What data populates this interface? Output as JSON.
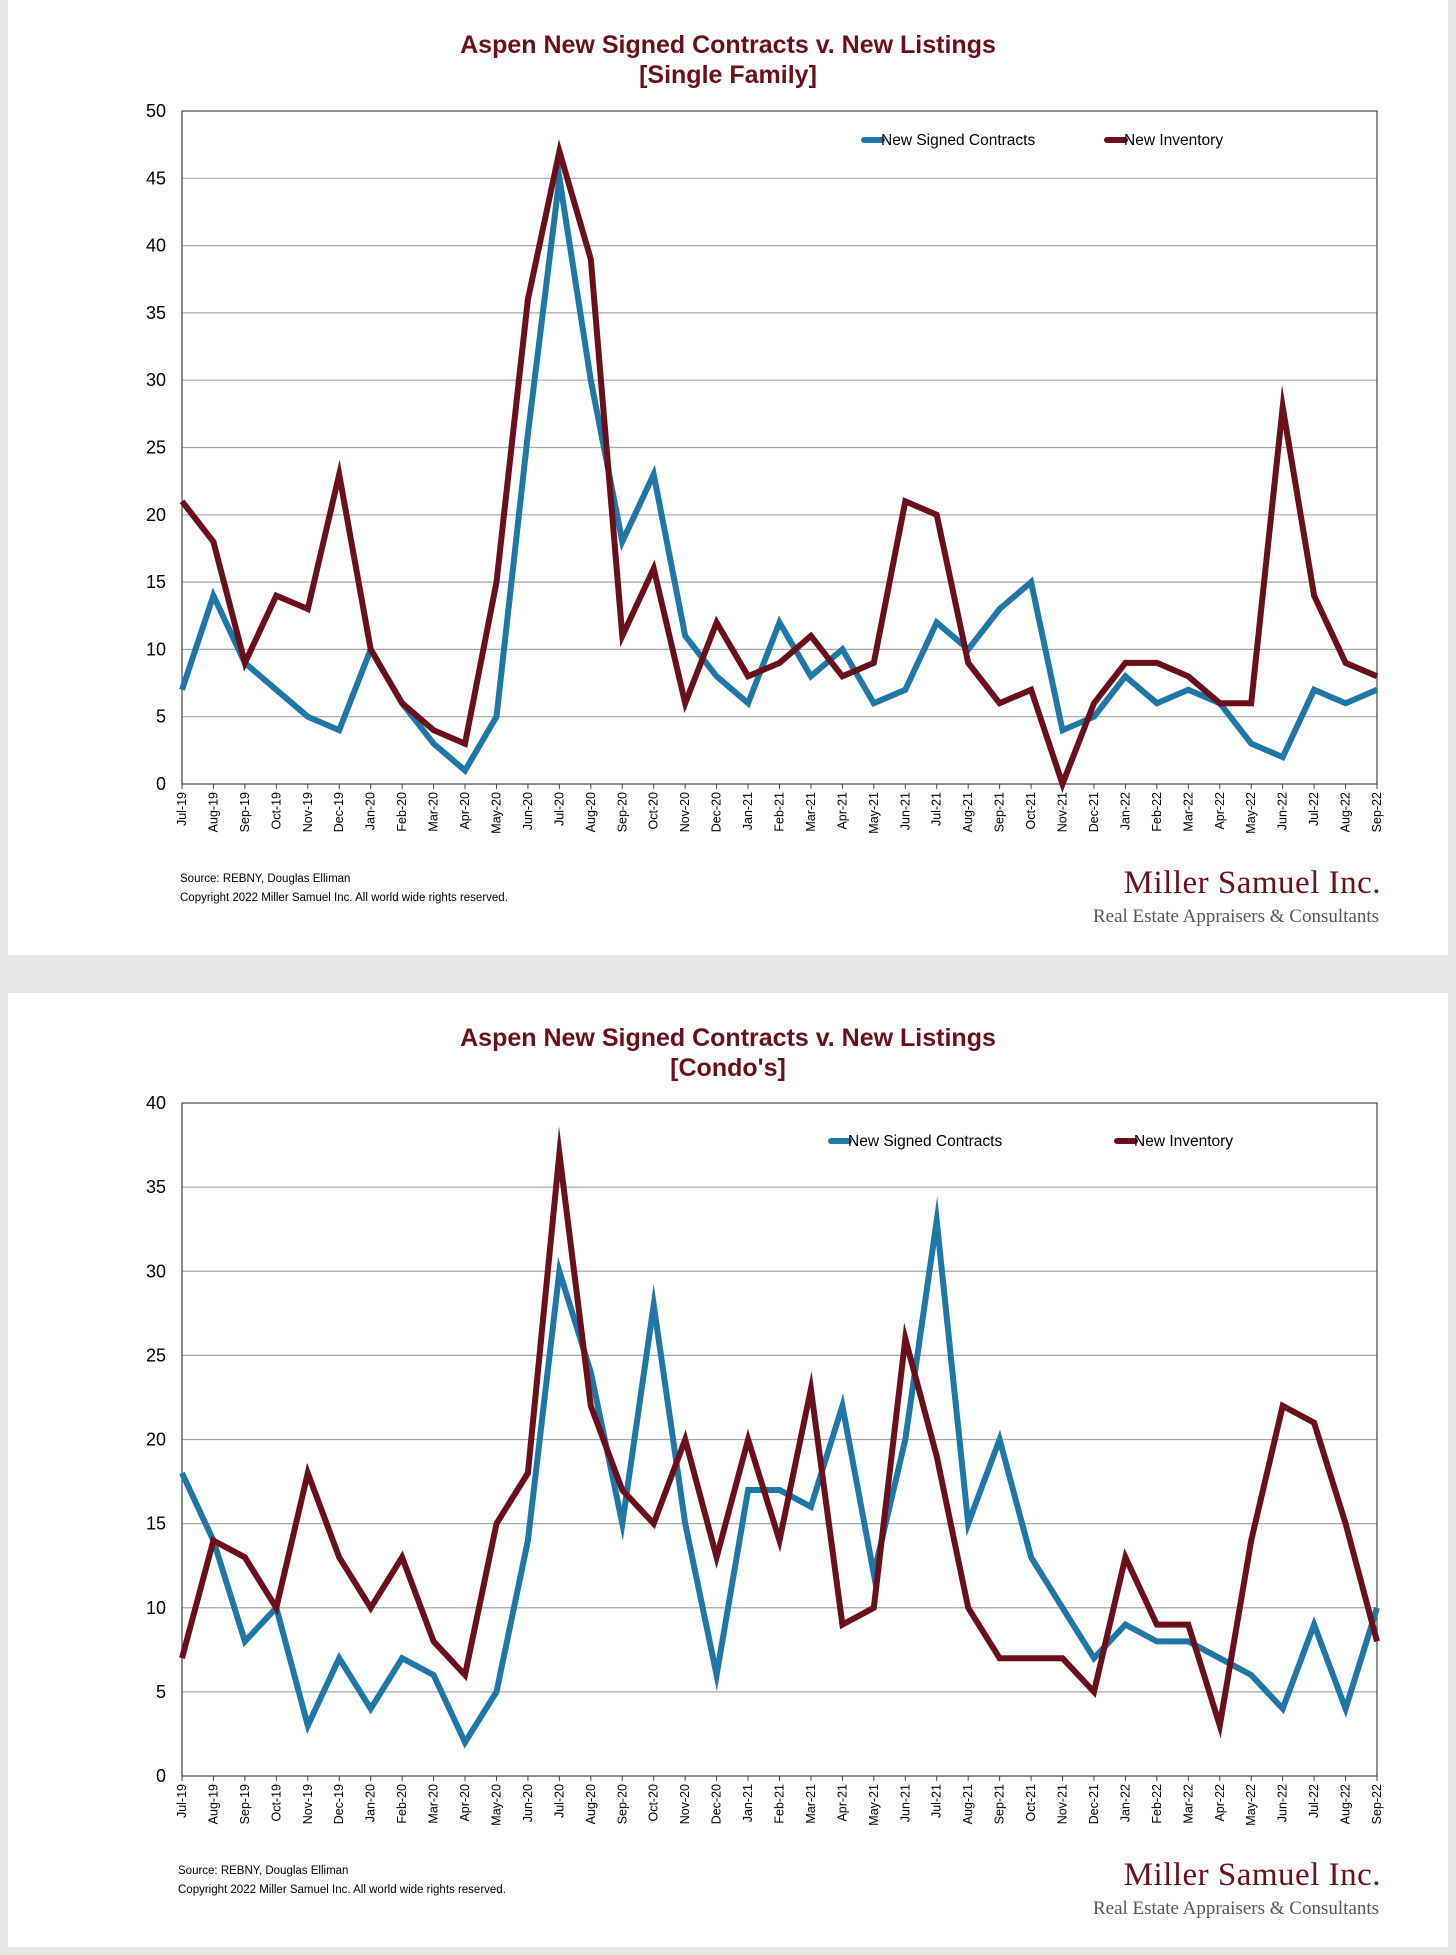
{
  "chart_data": [
    {
      "type": "line",
      "title": "Aspen New Signed Contracts v. New Listings",
      "subtitle": "[Single Family]",
      "xlabel": "",
      "ylabel": "",
      "ylim": [
        0,
        50
      ],
      "yticks": [
        0,
        5,
        10,
        15,
        20,
        25,
        30,
        35,
        40,
        45,
        50
      ],
      "grid": true,
      "legend_position": "top-right",
      "categories": [
        "Jul-19",
        "Aug-19",
        "Sep-19",
        "Oct-19",
        "Nov-19",
        "Dec-19",
        "Jan-20",
        "Feb-20",
        "Mar-20",
        "Apr-20",
        "May-20",
        "Jun-20",
        "Jul-20",
        "Aug-20",
        "Sep-20",
        "Oct-20",
        "Nov-20",
        "Dec-20",
        "Jan-21",
        "Feb-21",
        "Mar-21",
        "Apr-21",
        "May-21",
        "Jun-21",
        "Jul-21",
        "Aug-21",
        "Sep-21",
        "Oct-21",
        "Nov-21",
        "Dec-21",
        "Jan-22",
        "Feb-22",
        "Mar-22",
        "Apr-22",
        "May-22",
        "Jun-22",
        "Jul-22",
        "Aug-22",
        "Sep-22"
      ],
      "series": [
        {
          "name": "New Signed Contracts",
          "color": "#1f77a8",
          "values": [
            7,
            14,
            9,
            7,
            5,
            4,
            10,
            6,
            3,
            1,
            5,
            26,
            45,
            30,
            18,
            23,
            11,
            8,
            6,
            12,
            8,
            10,
            6,
            7,
            12,
            10,
            13,
            15,
            4,
            5,
            8,
            6,
            7,
            6,
            3,
            2,
            7,
            6,
            7
          ]
        },
        {
          "name": "New Inventory",
          "color": "#6b0f1a",
          "values": [
            21,
            18,
            9,
            14,
            13,
            23,
            10,
            6,
            4,
            3,
            15,
            36,
            47,
            39,
            11,
            16,
            6,
            12,
            8,
            9,
            11,
            8,
            9,
            21,
            20,
            9,
            6,
            7,
            0,
            6,
            9,
            9,
            8,
            6,
            6,
            28,
            14,
            9,
            8
          ]
        }
      ],
      "source": "Source: REBNY, Douglas Elliman",
      "copyright": "Copyright 2022 Miller Samuel Inc.  All world wide rights reserved.",
      "logo_name": "Miller Samuel Inc.",
      "logo_tagline": "Real Estate Appraisers & Consultants"
    },
    {
      "type": "line",
      "title": "Aspen New Signed Contracts v. New Listings",
      "subtitle": "[Condo's]",
      "xlabel": "",
      "ylabel": "",
      "ylim": [
        0,
        40
      ],
      "yticks": [
        0,
        5,
        10,
        15,
        20,
        25,
        30,
        35,
        40
      ],
      "grid": true,
      "legend_position": "top-right",
      "categories": [
        "Jul-19",
        "Aug-19",
        "Sep-19",
        "Oct-19",
        "Nov-19",
        "Dec-19",
        "Jan-20",
        "Feb-20",
        "Mar-20",
        "Apr-20",
        "May-20",
        "Jun-20",
        "Jul-20",
        "Aug-20",
        "Sep-20",
        "Oct-20",
        "Nov-20",
        "Dec-20",
        "Jan-21",
        "Feb-21",
        "Mar-21",
        "Apr-21",
        "May-21",
        "Jun-21",
        "Jul-21",
        "Aug-21",
        "Sep-21",
        "Oct-21",
        "Nov-21",
        "Dec-21",
        "Jan-22",
        "Feb-22",
        "Mar-22",
        "Apr-22",
        "May-22",
        "Jun-22",
        "Jul-22",
        "Aug-22",
        "Sep-22"
      ],
      "series": [
        {
          "name": "New Signed Contracts",
          "color": "#1f77a8",
          "values": [
            18,
            14,
            8,
            10,
            3,
            7,
            4,
            7,
            6,
            2,
            5,
            14,
            30,
            24,
            15,
            28,
            15,
            6,
            17,
            17,
            16,
            22,
            12,
            20,
            33,
            15,
            20,
            13,
            10,
            7,
            9,
            8,
            8,
            7,
            6,
            4,
            9,
            4,
            10
          ]
        },
        {
          "name": "New Inventory",
          "color": "#6b0f1a",
          "values": [
            7,
            14,
            13,
            10,
            18,
            13,
            10,
            13,
            8,
            6,
            15,
            18,
            37,
            22,
            17,
            15,
            20,
            13,
            20,
            14,
            23,
            9,
            10,
            26,
            19,
            10,
            7,
            7,
            7,
            5,
            13,
            9,
            9,
            3,
            14,
            22,
            21,
            15,
            8
          ]
        }
      ],
      "source": "Source: REBNY, Douglas Elliman",
      "copyright": "Copyright 2022 Miller Samuel Inc.  All world wide rights reserved.",
      "logo_name": "Miller Samuel Inc.",
      "logo_tagline": "Real Estate Appraisers & Consultants"
    }
  ]
}
